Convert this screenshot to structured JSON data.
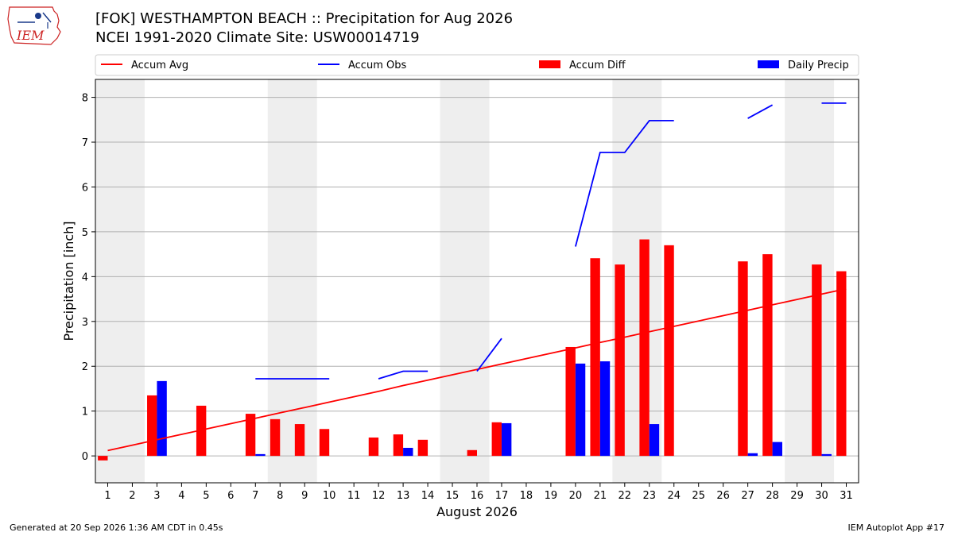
{
  "header": {
    "title": "[FOK] WESTHAMPTON BEACH :: Precipitation for Aug 2026",
    "subtitle": "NCEI 1991-2020 Climate Site: USW00014719",
    "logo_text": "IEM"
  },
  "footer": {
    "generated": "Generated at 20 Sep 2026 1:36 AM CDT in 0.45s",
    "app": "IEM Autoplot App #17"
  },
  "chart_data": {
    "type": "bar",
    "xlabel": "August 2026",
    "ylabel": "Precipitation [inch]",
    "xlim": [
      0.5,
      31.5
    ],
    "ylim": [
      -0.6,
      8.4
    ],
    "yticks": [
      0,
      1,
      2,
      3,
      4,
      5,
      6,
      7,
      8
    ],
    "grid": "horizontal",
    "legend_position": "top",
    "weekend_shading": [
      [
        0.5,
        2.5
      ],
      [
        7.5,
        9.5
      ],
      [
        14.5,
        16.5
      ],
      [
        21.5,
        23.5
      ],
      [
        28.5,
        30.5
      ]
    ],
    "days": [
      1,
      2,
      3,
      4,
      5,
      6,
      7,
      8,
      9,
      10,
      11,
      12,
      13,
      14,
      15,
      16,
      17,
      18,
      19,
      20,
      21,
      22,
      23,
      24,
      25,
      26,
      27,
      28,
      29,
      30,
      31
    ],
    "series": [
      {
        "name": "Accum Avg",
        "kind": "line",
        "color": "#ff0000",
        "values": [
          0.12,
          0.24,
          0.36,
          0.48,
          0.6,
          0.72,
          0.84,
          0.96,
          1.08,
          1.2,
          1.32,
          1.44,
          1.57,
          1.69,
          1.81,
          1.93,
          2.05,
          2.17,
          2.29,
          2.41,
          2.53,
          2.65,
          2.77,
          2.89,
          3.01,
          3.13,
          3.25,
          3.37,
          3.49,
          3.61,
          3.73
        ]
      },
      {
        "name": "Accum Obs",
        "kind": "line",
        "color": "#0000ff",
        "values": [
          null,
          null,
          null,
          null,
          null,
          null,
          1.72,
          1.72,
          1.72,
          1.72,
          null,
          1.72,
          1.89,
          1.89,
          null,
          1.89,
          2.62,
          null,
          null,
          4.67,
          6.77,
          6.77,
          7.48,
          7.48,
          null,
          null,
          7.53,
          7.83,
          null,
          7.87,
          7.87
        ]
      },
      {
        "name": "Accum Diff",
        "kind": "bar",
        "color": "#ff0000",
        "values": [
          -0.1,
          0,
          1.35,
          0,
          1.12,
          0,
          0.94,
          0.82,
          0.71,
          0.6,
          0,
          0.41,
          0.48,
          0.36,
          0,
          0.13,
          0.75,
          0,
          0,
          2.43,
          4.41,
          4.27,
          4.83,
          4.7,
          0,
          0,
          4.34,
          4.5,
          0,
          4.27,
          4.12
        ]
      },
      {
        "name": "Daily Precip",
        "kind": "bar",
        "color": "#0000ff",
        "values": [
          0,
          0,
          1.67,
          0,
          0,
          0,
          0.04,
          0,
          0,
          0,
          0,
          0,
          0.18,
          0,
          0,
          0,
          0.73,
          0,
          0,
          2.06,
          2.11,
          0,
          0.71,
          0,
          0,
          0,
          0.06,
          0.31,
          0,
          0.04,
          0
        ]
      }
    ]
  }
}
